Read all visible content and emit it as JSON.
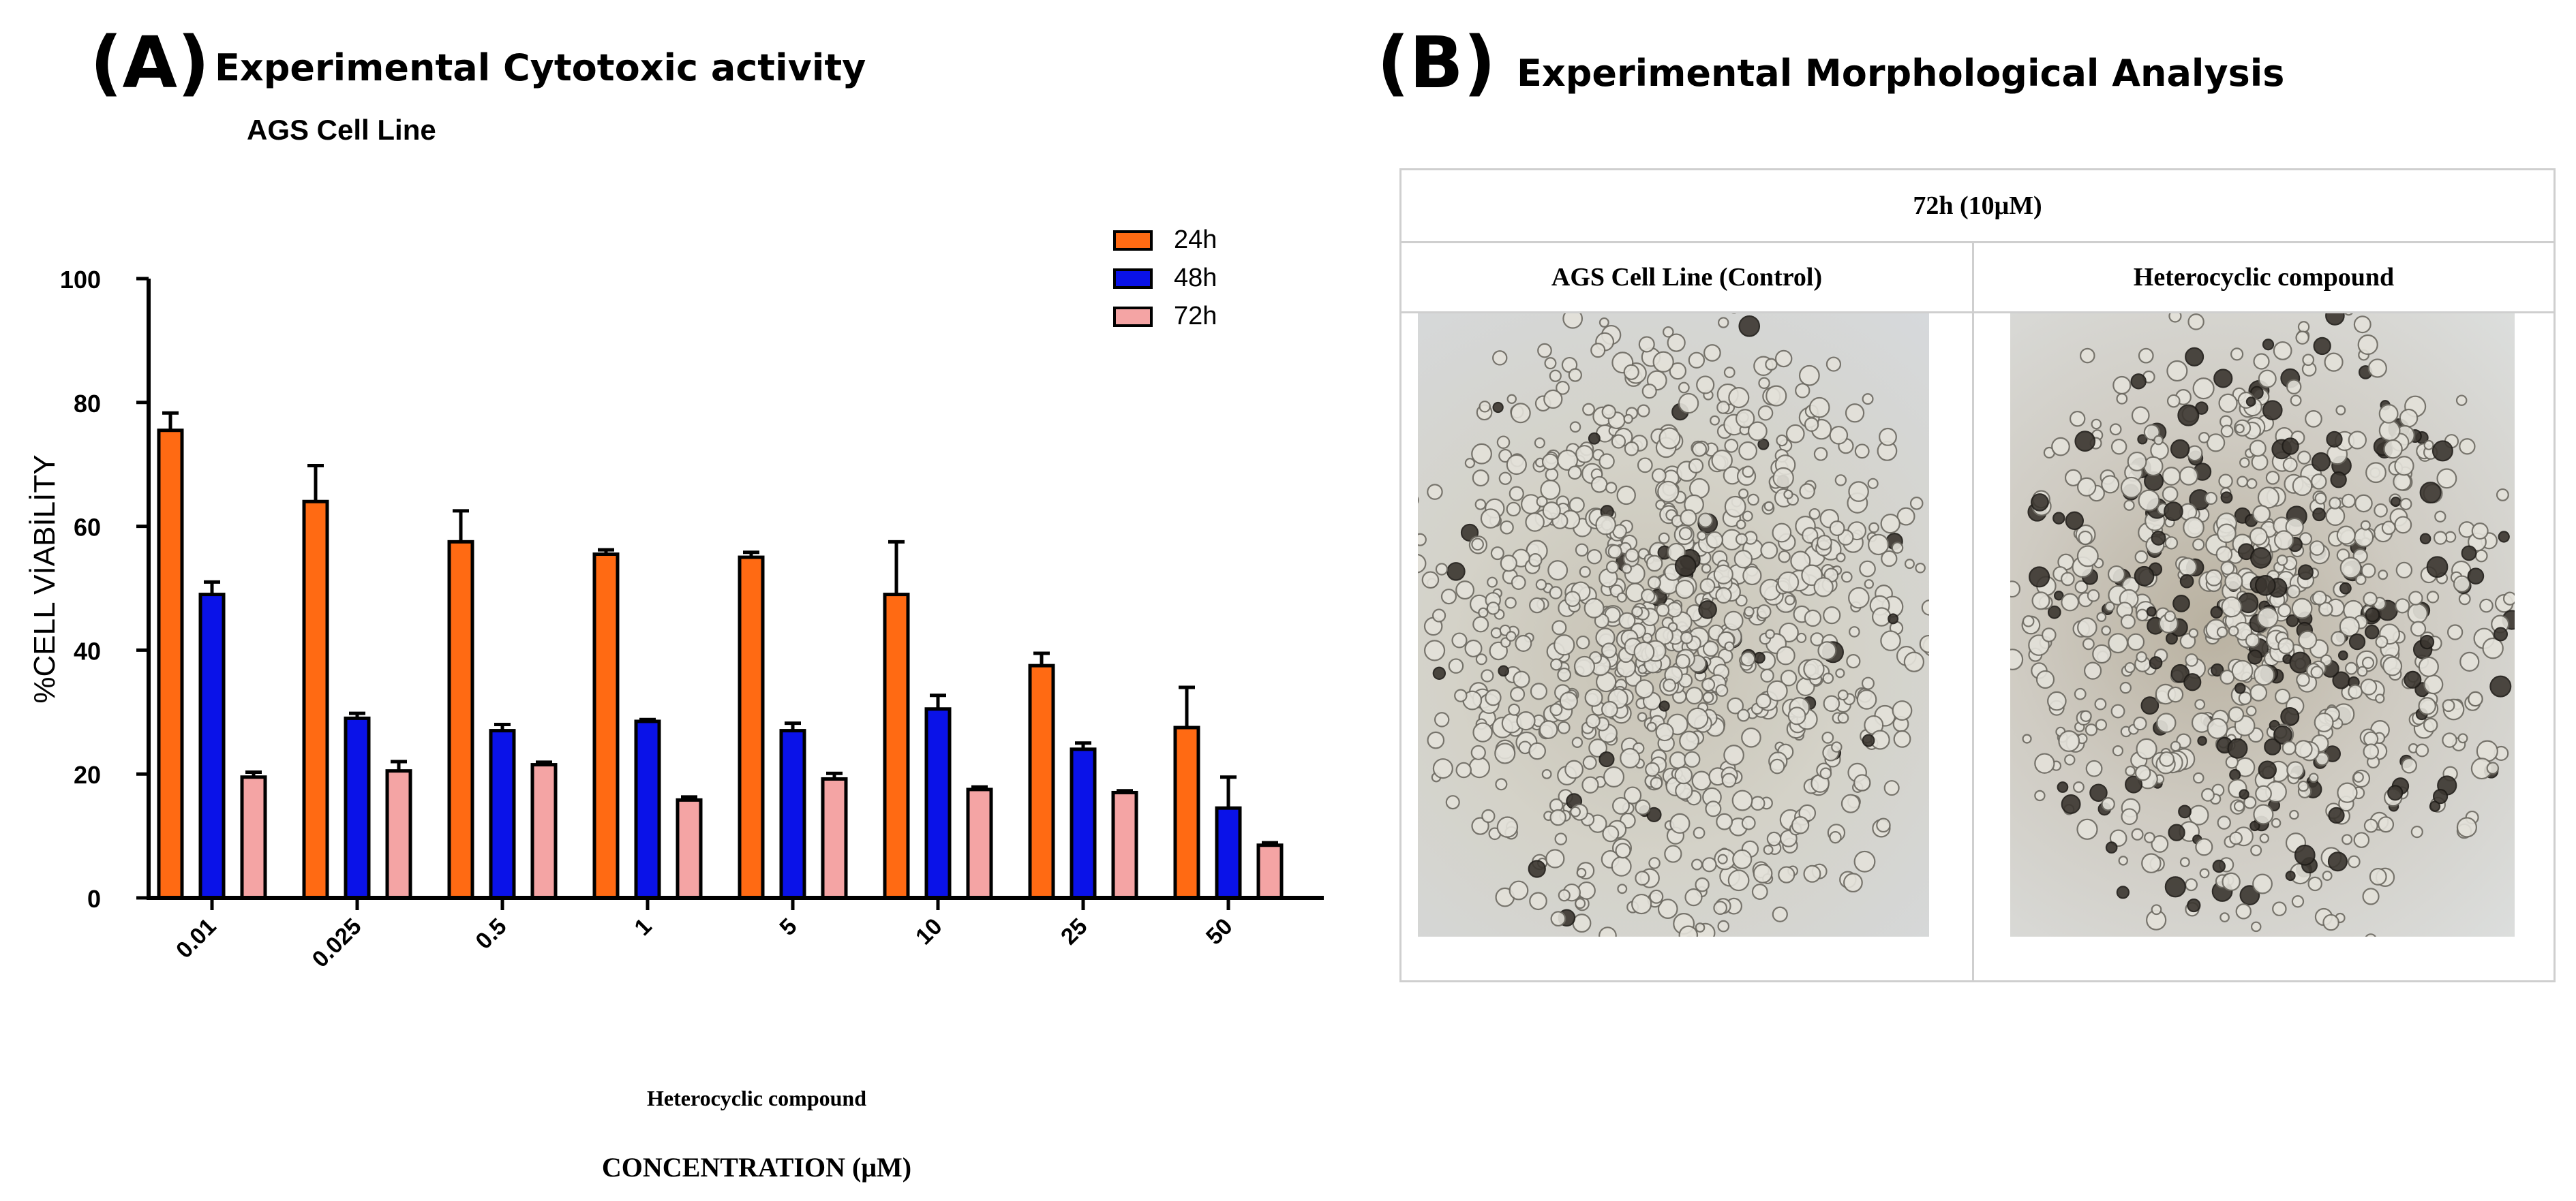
{
  "panel_a": {
    "letter": "(A)",
    "title": "Experimental Cytotoxic activity",
    "subtitle": "AGS Cell Line",
    "x_caption_1": "Heterocyclic compound",
    "x_caption_2": "CONCENTRATION (μM)"
  },
  "panel_b": {
    "letter": "(B)",
    "title": "Experimental Morphological Analysis",
    "table_header": "72h (10μM)",
    "col_control": "AGS Cell Line (Control)",
    "col_treated": "Heterocyclic compound",
    "image_control": "microscopy-control",
    "image_treated": "microscopy-treated"
  },
  "chart_data": {
    "type": "bar",
    "title": "AGS Cell Line",
    "xlabel": "CONCENTRATION (μM)",
    "ylabel": "%CELL VİABİLİTY",
    "ylim": [
      0,
      100
    ],
    "yticks": [
      0,
      20,
      40,
      60,
      80,
      100
    ],
    "categories": [
      "0.01",
      "0.025",
      "0.5",
      "1",
      "5",
      "10",
      "25",
      "50"
    ],
    "legend_position": "top-right",
    "series": [
      {
        "name": "24h",
        "color": "#ff6a13",
        "values": [
          75.5,
          64,
          57.5,
          55.5,
          55,
          49,
          37.5,
          27.5
        ],
        "errors": [
          2.8,
          5.8,
          5,
          0.7,
          0.8,
          8.5,
          2,
          6.5
        ]
      },
      {
        "name": "48h",
        "color": "#0a12e8",
        "values": [
          49,
          29,
          27,
          28.5,
          27,
          30.5,
          24,
          14.5
        ],
        "errors": [
          2,
          0.8,
          1,
          0.3,
          1.2,
          2.2,
          1,
          5
        ]
      },
      {
        "name": "72h",
        "color": "#f4a4a4",
        "values": [
          19.5,
          20.5,
          21.5,
          15.8,
          19.2,
          17.5,
          17,
          8.5
        ],
        "errors": [
          0.8,
          1.5,
          0.4,
          0.5,
          0.9,
          0.4,
          0.3,
          0.4
        ]
      }
    ]
  }
}
